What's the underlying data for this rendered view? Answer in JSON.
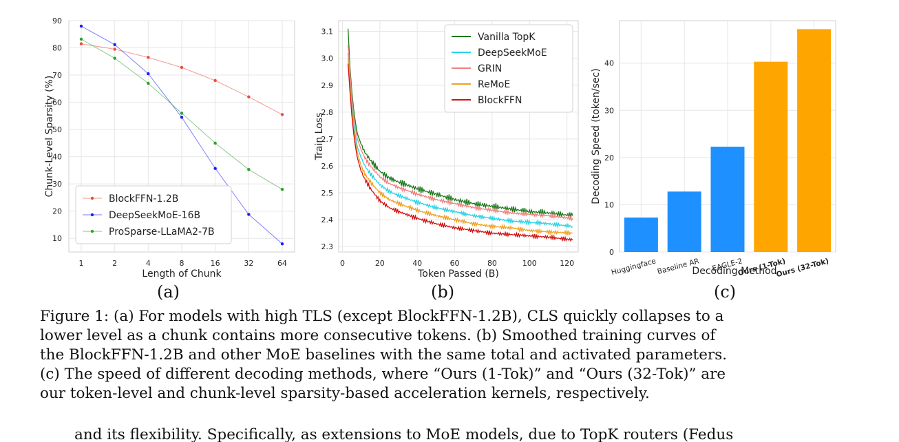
{
  "chart_data": [
    {
      "type": "line",
      "xlabel": "Length of Chunk",
      "ylabel": "Chunk-Level Sparsity (%)",
      "categories": [
        "1",
        "2",
        "4",
        "8",
        "16",
        "32",
        "64"
      ],
      "y_ticks": [
        "10",
        "20",
        "30",
        "40",
        "50",
        "60",
        "70",
        "80",
        "90"
      ],
      "ylim": [
        5,
        90
      ],
      "legend_position": "bottom-left",
      "grid": true,
      "series": [
        {
          "name": "BlockFFN-1.2B",
          "color": "#e74c3c",
          "values": [
            81.5,
            79.5,
            76.5,
            72.8,
            68.0,
            62.0,
            55.5
          ]
        },
        {
          "name": "DeepSeekMoE-16B",
          "color": "#1a1aff",
          "values": [
            88.0,
            81.2,
            70.5,
            54.5,
            35.7,
            18.8,
            8.0
          ]
        },
        {
          "name": "ProSparse-LLaMA2-7B",
          "color": "#2ca02c",
          "values": [
            83.2,
            76.2,
            67.0,
            56.0,
            45.0,
            35.3,
            28.0
          ]
        }
      ]
    },
    {
      "type": "line",
      "xlabel": "Token Passed (B)",
      "ylabel": "Train Loss",
      "x_ticks": [
        "0",
        "20",
        "40",
        "60",
        "80",
        "100",
        "120"
      ],
      "y_ticks": [
        "2.3",
        "2.4",
        "2.5",
        "2.6",
        "2.7",
        "2.8",
        "2.9",
        "3.0",
        "3.1"
      ],
      "xlim": [
        -2,
        126
      ],
      "ylim": [
        2.28,
        3.14
      ],
      "legend_position": "top-right",
      "grid": true,
      "x": [
        3,
        4,
        5,
        6,
        7,
        8,
        10,
        12,
        15,
        20,
        25,
        30,
        40,
        50,
        60,
        70,
        80,
        90,
        100,
        110,
        123
      ],
      "series": [
        {
          "name": "Vanilla TopK",
          "color": "#1a7a1a",
          "values": [
            3.11,
            2.97,
            2.88,
            2.81,
            2.76,
            2.72,
            2.68,
            2.65,
            2.62,
            2.58,
            2.555,
            2.54,
            2.515,
            2.495,
            2.475,
            2.46,
            2.45,
            2.44,
            2.43,
            2.425,
            2.415
          ]
        },
        {
          "name": "DeepSeekMoE",
          "color": "#22d3e6",
          "values": [
            3.02,
            2.92,
            2.83,
            2.76,
            2.71,
            2.67,
            2.63,
            2.6,
            2.57,
            2.53,
            2.505,
            2.49,
            2.465,
            2.445,
            2.43,
            2.415,
            2.405,
            2.395,
            2.39,
            2.385,
            2.375
          ]
        },
        {
          "name": "GRIN",
          "color": "#f08080",
          "values": [
            3.05,
            2.95,
            2.86,
            2.79,
            2.74,
            2.7,
            2.66,
            2.63,
            2.6,
            2.56,
            2.535,
            2.52,
            2.495,
            2.475,
            2.46,
            2.445,
            2.435,
            2.425,
            2.42,
            2.415,
            2.405
          ]
        },
        {
          "name": "ReMoE",
          "color": "#f0a020",
          "values": [
            3.0,
            2.9,
            2.81,
            2.74,
            2.69,
            2.65,
            2.6,
            2.57,
            2.54,
            2.5,
            2.475,
            2.46,
            2.435,
            2.415,
            2.4,
            2.385,
            2.375,
            2.37,
            2.36,
            2.355,
            2.35
          ]
        },
        {
          "name": "BlockFFN",
          "color": "#d41010",
          "values": [
            2.98,
            2.88,
            2.79,
            2.72,
            2.67,
            2.63,
            2.58,
            2.55,
            2.515,
            2.47,
            2.445,
            2.43,
            2.405,
            2.385,
            2.37,
            2.36,
            2.35,
            2.345,
            2.34,
            2.335,
            2.325
          ]
        }
      ]
    },
    {
      "type": "bar",
      "xlabel": "Decoding Method",
      "ylabel": "Decoding Speed (token/sec)",
      "y_ticks": [
        "0",
        "10",
        "20",
        "30",
        "40"
      ],
      "ylim": [
        0,
        49
      ],
      "grid": true,
      "categories": [
        "Huggingface",
        "Baseline AR",
        "EAGLE-2",
        "Ours (1-Tok)",
        "Ours (32-Tok)"
      ],
      "values": [
        7.3,
        12.8,
        22.3,
        40.3,
        47.2
      ],
      "colors": [
        "#1e90ff",
        "#1e90ff",
        "#1e90ff",
        "#ffa500",
        "#ffa500"
      ],
      "bold_labels": [
        false,
        false,
        false,
        true,
        true
      ]
    }
  ],
  "subcaptions": [
    "(a)",
    "(b)",
    "(c)"
  ],
  "caption_lines": [
    "Figure 1: (a) For models with high TLS (except BlockFFN-1.2B), CLS quickly collapses to a",
    "lower level as a chunk contains more consecutive tokens. (b) Smoothed training curves of",
    "the BlockFFN-1.2B and other MoE baselines with the same total and activated parameters.",
    "(c) The speed of different decoding methods, where “Ours (1-Tok)” and “Ours (32-Tok)” are",
    "our token-level and chunk-level sparsity-based acceleration kernels, respectively."
  ],
  "next_text": "and its flexibility. Specifically, as extensions to MoE models, due to TopK routers (Fedus"
}
